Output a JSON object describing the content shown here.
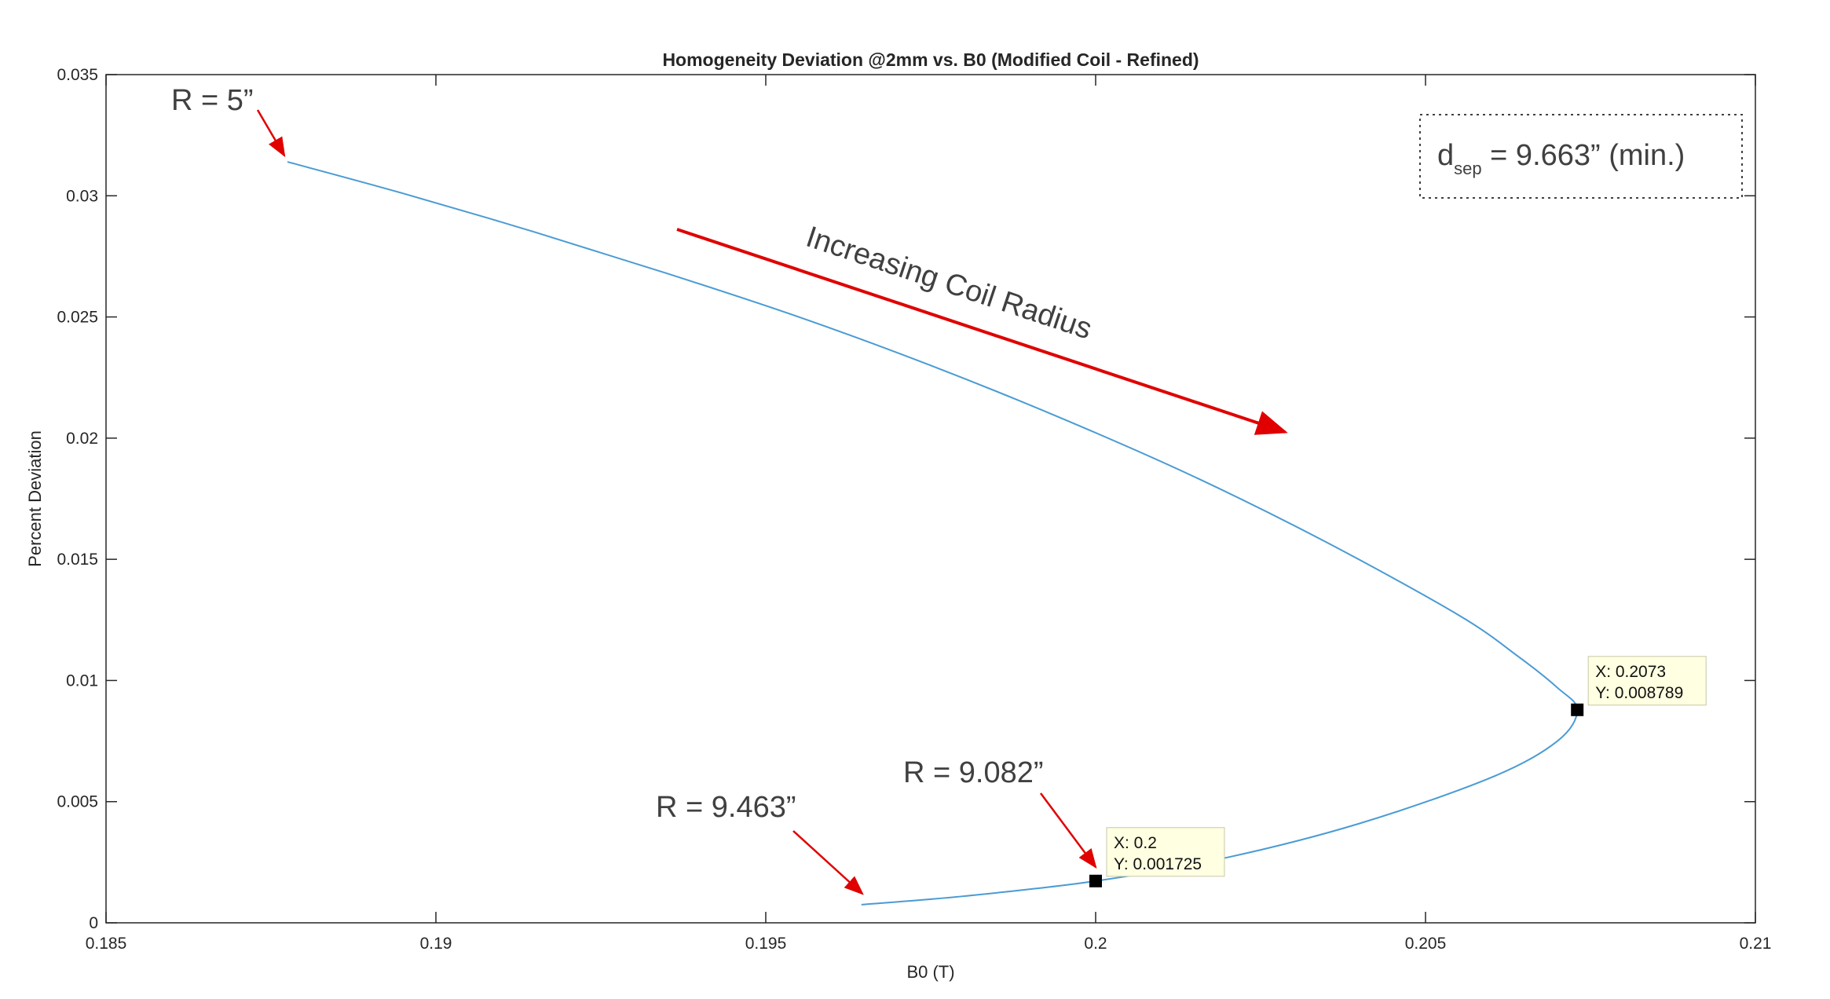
{
  "chart_data": {
    "type": "line",
    "title": "Homogeneity Deviation @2mm vs. B0 (Modified Coil - Refined)",
    "xlabel": "B0 (T)",
    "ylabel": "Percent Deviation",
    "xlim": [
      0.185,
      0.21
    ],
    "ylim": [
      0,
      0.035
    ],
    "xticks": [
      0.185,
      0.19,
      0.195,
      0.2,
      0.205,
      0.21
    ],
    "yticks": [
      0,
      0.005,
      0.01,
      0.015,
      0.02,
      0.025,
      0.03,
      0.035
    ],
    "xtick_labels": [
      "0.185",
      "0.19",
      "0.195",
      "0.2",
      "0.205",
      "0.21"
    ],
    "ytick_labels": [
      "0",
      "0.005",
      "0.01",
      "0.015",
      "0.02",
      "0.025",
      "0.03",
      "0.035"
    ],
    "grid": false,
    "series": [
      {
        "color": "#4a9bd4",
        "x": [
          0.18775,
          0.1895,
          0.1915,
          0.1935,
          0.1955,
          0.1975,
          0.1995,
          0.2015,
          0.2035,
          0.2055,
          0.2064,
          0.207,
          0.2073,
          0.207,
          0.206,
          0.204,
          0.202,
          0.2,
          0.198,
          0.19645
        ],
        "y": [
          0.0314,
          0.0301,
          0.0285,
          0.0268,
          0.025,
          0.023,
          0.0208,
          0.0184,
          0.0157,
          0.0127,
          0.011,
          0.0097,
          0.008789,
          0.0075,
          0.006,
          0.0041,
          0.0027,
          0.001725,
          0.0011,
          0.00075
        ]
      }
    ],
    "datatips": [
      {
        "x_label": "X: 0.2073",
        "y_label": "Y: 0.008789",
        "x": 0.2073,
        "y": 0.008789
      },
      {
        "x_label": "X: 0.2",
        "y_label": "Y: 0.001725",
        "x": 0.2,
        "y": 0.001725
      }
    ],
    "annotations": {
      "r_start": "R = 5”",
      "r_mid": "R = 9.082”",
      "r_end": "R = 9.463”",
      "direction": "Increasing Coil Radius",
      "dsep_prefix": "d",
      "dsep_sub": "sep",
      "dsep_value": " = 9.663” (min.)"
    },
    "colors": {
      "line": "#4a9bd4",
      "arrow": "#e00000",
      "axis": "#262626",
      "tip_bg": "#ffffe1"
    }
  }
}
